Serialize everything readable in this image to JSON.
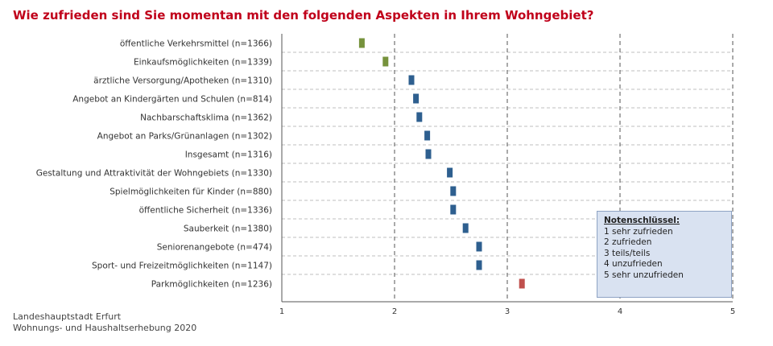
{
  "title": "Wie zufrieden sind Sie momentan mit den folgenden Aspekten in Ihrem Wohngebiet?",
  "source": {
    "line1": "Landeshauptstadt Erfurt",
    "line2": "Wohnungs- und Haushaltserhebung 2020"
  },
  "legend": {
    "title": "Notenschlüssel:",
    "items": [
      "1 sehr zufrieden",
      "2 zufrieden",
      "3 teils/teils",
      "4 unzufrieden",
      "5 sehr unzufrieden"
    ]
  },
  "colors": {
    "green": "#76923c",
    "blue": "#2e5f8f",
    "red": "#c0504d",
    "title": "#c0001a"
  },
  "chart_data": {
    "type": "scatter",
    "title": "Wie zufrieden sind Sie momentan mit den folgenden Aspekten in Ihrem Wohngebiet?",
    "xlabel": "",
    "ylabel": "",
    "xlim": [
      1,
      5
    ],
    "xticks": [
      1,
      2,
      3,
      4,
      5
    ],
    "grid": "vertical dashed at 2, 3, 4, 5; horizontal dashed per row",
    "legend_placement": "bottom-right",
    "categories": [
      "öffentliche Verkehrsmittel (n=1366)",
      "Einkaufsmöglichkeiten (n=1339)",
      "ärztliche Versorgung/Apotheken (n=1310)",
      "Angebot an Kindergärten und Schulen (n=814)",
      "Nachbarschaftsklima (n=1362)",
      "Angebot an Parks/Grünanlagen (n=1302)",
      "Insgesamt (n=1316)",
      "Gestaltung und Attraktivität der Wohngebiets (n=1330)",
      "Spielmöglichkeiten für Kinder (n=880)",
      "öffentliche Sicherheit (n=1336)",
      "Sauberkeit (n=1380)",
      "Seniorenangebote (n=474)",
      "Sport- und Freizeitmöglichkeiten (n=1147)",
      "Parkmöglichkeiten (n=1236)"
    ],
    "values": [
      1.71,
      1.92,
      2.15,
      2.19,
      2.22,
      2.29,
      2.3,
      2.49,
      2.52,
      2.52,
      2.63,
      2.75,
      2.75,
      3.13
    ],
    "colors": [
      "green",
      "green",
      "blue",
      "blue",
      "blue",
      "blue",
      "blue",
      "blue",
      "blue",
      "blue",
      "blue",
      "blue",
      "blue",
      "red"
    ]
  }
}
